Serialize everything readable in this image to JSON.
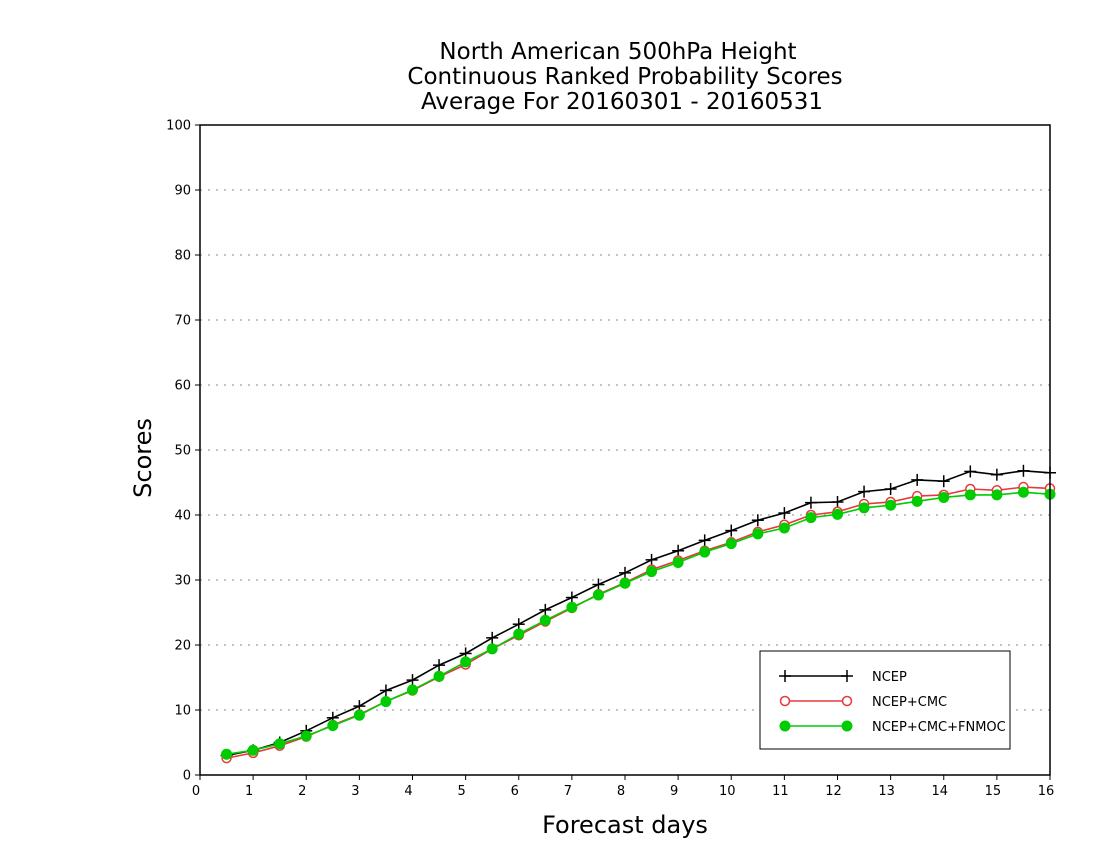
{
  "chart_data": {
    "type": "line",
    "title_lines": [
      "North American 500hPa Height",
      "Continuous Ranked Probability Scores",
      "Average For 20160301 - 20160531"
    ],
    "xlabel": "Forecast days",
    "ylabel": "Scores",
    "xlim": [
      0,
      16
    ],
    "ylim": [
      0,
      100
    ],
    "xticks": [
      0,
      1,
      2,
      3,
      4,
      5,
      6,
      7,
      8,
      9,
      10,
      11,
      12,
      13,
      14,
      15,
      16
    ],
    "yticks": [
      0,
      10,
      20,
      30,
      40,
      50,
      60,
      70,
      80,
      90,
      100
    ],
    "grid": "horizontal dotted",
    "legend_position": "bottom-right",
    "x": [
      0.5,
      1,
      1.5,
      2,
      2.5,
      3,
      3.5,
      4,
      4.5,
      5,
      5.5,
      6,
      6.5,
      7,
      7.5,
      8,
      8.5,
      9,
      9.5,
      10,
      10.5,
      11,
      11.5,
      12,
      12.5,
      13,
      13.5,
      14,
      14.5,
      15,
      15.5,
      16
    ],
    "series": [
      {
        "name": "NCEP",
        "color": "#000000",
        "marker": "plus",
        "values": [
          3.0,
          3.8,
          5.0,
          6.8,
          8.8,
          10.6,
          13.0,
          14.6,
          16.9,
          18.7,
          21.1,
          23.2,
          25.4,
          27.3,
          29.3,
          31.1,
          33.1,
          34.5,
          36.1,
          37.6,
          39.2,
          40.3,
          41.9,
          42.0,
          43.6,
          44.0,
          45.4,
          45.2,
          46.7,
          46.2,
          46.8,
          46.5
        ]
      },
      {
        "name": "NCEP+CMC",
        "color": "#e8383d",
        "marker": "open-circle",
        "values": [
          2.6,
          3.4,
          4.5,
          5.9,
          7.7,
          9.3,
          11.3,
          13.0,
          15.1,
          17.0,
          19.4,
          21.5,
          23.6,
          25.7,
          27.8,
          29.6,
          31.6,
          33.0,
          34.5,
          35.8,
          37.4,
          38.5,
          40.0,
          40.5,
          41.7,
          42.0,
          42.9,
          43.1,
          44.0,
          43.8,
          44.3,
          44.1
        ]
      },
      {
        "name": "NCEP+CMC+FNMOC",
        "color": "#00cc00",
        "marker": "filled-circle",
        "values": [
          3.2,
          3.8,
          4.8,
          6.0,
          7.6,
          9.2,
          11.3,
          13.1,
          15.2,
          17.4,
          19.4,
          21.7,
          23.8,
          25.8,
          27.7,
          29.5,
          31.3,
          32.7,
          34.3,
          35.6,
          37.1,
          38.0,
          39.6,
          40.1,
          41.1,
          41.5,
          42.1,
          42.7,
          43.1,
          43.1,
          43.5,
          43.2
        ]
      }
    ]
  }
}
